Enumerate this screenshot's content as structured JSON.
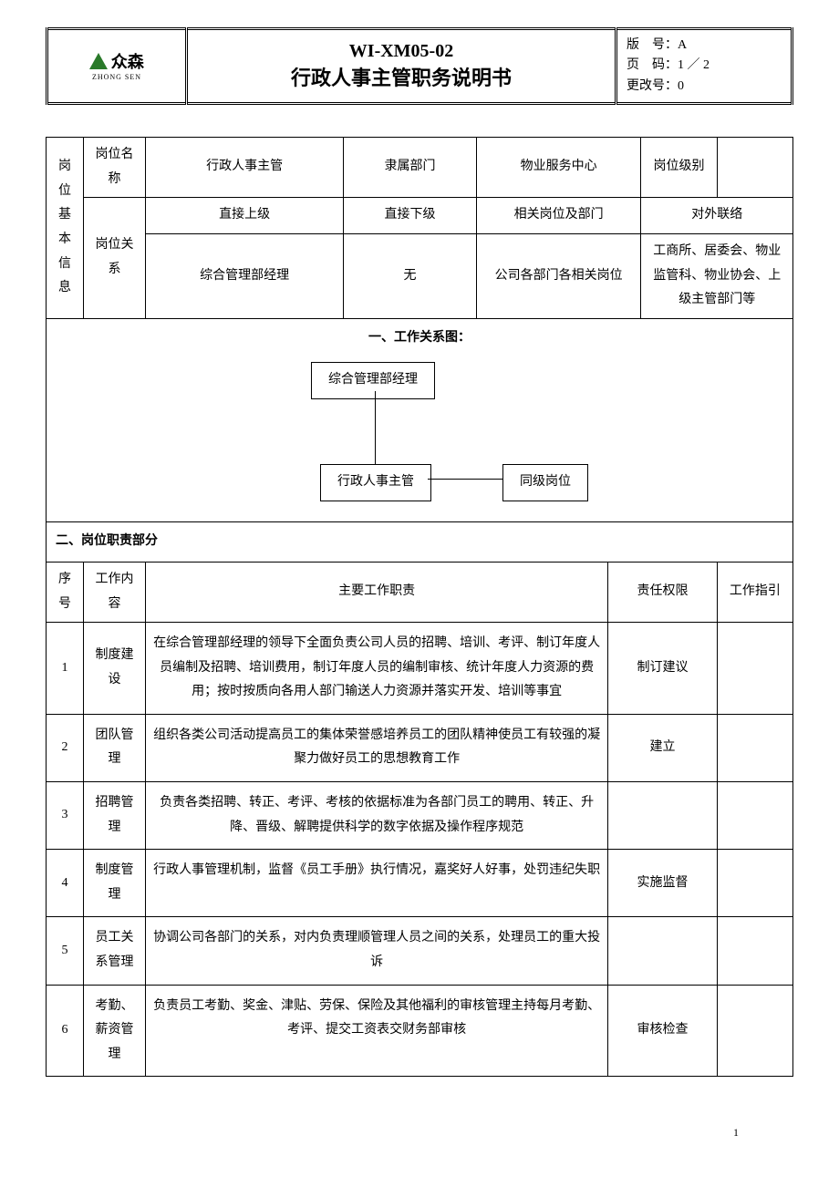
{
  "header": {
    "logo_name": "众森",
    "logo_sub": "ZHONG SEN",
    "doc_code": "WI-XM05-02",
    "doc_title": "行政人事主管职务说明书",
    "version_label": "版　号：",
    "version": "A",
    "page_label": "页　码：",
    "page": "1 ／ 2",
    "change_label": "更改号：",
    "change": "0"
  },
  "basic": {
    "group_label": "岗位基本信息",
    "name_label": "岗位名称",
    "name_value": "行政人事主管",
    "dept_label": "隶属部门",
    "dept_value": "物业服务中心",
    "level_label": "岗位级别",
    "level_value": "",
    "rel_label": "岗位关系",
    "superior_label": "直接上级",
    "subordinate_label": "直接下级",
    "related_label": "相关岗位及部门",
    "external_label": "对外联络",
    "superior_value": "综合管理部经理",
    "subordinate_value": "无",
    "related_value": "公司各部门各相关岗位",
    "external_value": "工商所、居委会、物业监管科、物业协会、上级主管部门等"
  },
  "diagram": {
    "section_title": "一、工作关系图：",
    "box_top": "综合管理部经理",
    "box_left": "行政人事主管",
    "box_right": "同级岗位"
  },
  "resp": {
    "section_title": "二、岗位职责部分",
    "headers": {
      "no": "序号",
      "content": "工作内容",
      "main": "主要工作职责",
      "auth": "责任权限",
      "guide": "工作指引"
    },
    "rows": [
      {
        "no": "1",
        "content": "制度建设",
        "main": "在综合管理部经理的领导下全面负责公司人员的招聘、培训、考评、制订年度人员编制及招聘、培训费用，制订年度人员的编制审核、统计年度人力资源的费用；按时按质向各用人部门输送人力资源并落实开发、培训等事宜",
        "auth": "制订建议",
        "guide": ""
      },
      {
        "no": "2",
        "content": "团队管理",
        "main": "组织各类公司活动提高员工的集体荣誉感培养员工的团队精神使员工有较强的凝聚力做好员工的思想教育工作",
        "auth": "建立",
        "guide": ""
      },
      {
        "no": "3",
        "content": "招聘管理",
        "main": "负责各类招聘、转正、考评、考核的依据标准为各部门员工的聘用、转正、升降、晋级、解聘提供科学的数字依据及操作程序规范",
        "auth": "",
        "guide": ""
      },
      {
        "no": "4",
        "content": "制度管理",
        "main": "行政人事管理机制，监督《员工手册》执行情况，嘉奖好人好事，处罚违纪失职",
        "auth": "实施监督",
        "guide": ""
      },
      {
        "no": "5",
        "content": "员工关系管理",
        "main": "协调公司各部门的关系，对内负责理顺管理人员之间的关系，处理员工的重大投诉",
        "auth": "",
        "guide": ""
      },
      {
        "no": "6",
        "content": "考勤、薪资管理",
        "main": "负责员工考勤、奖金、津贴、劳保、保险及其他福利的审核管理主持每月考勤、考评、提交工资表交财务部审核",
        "auth": "审核检查",
        "guide": ""
      }
    ]
  },
  "footer": {
    "page_no": "1"
  },
  "style": {
    "font_family": "SimSun",
    "base_font_size": 14,
    "title_font_size": 22,
    "code_font_size": 20,
    "border_color": "#000000",
    "logo_color": "#2a7a2a",
    "bg_color": "#ffffff",
    "line_height": 1.9
  }
}
